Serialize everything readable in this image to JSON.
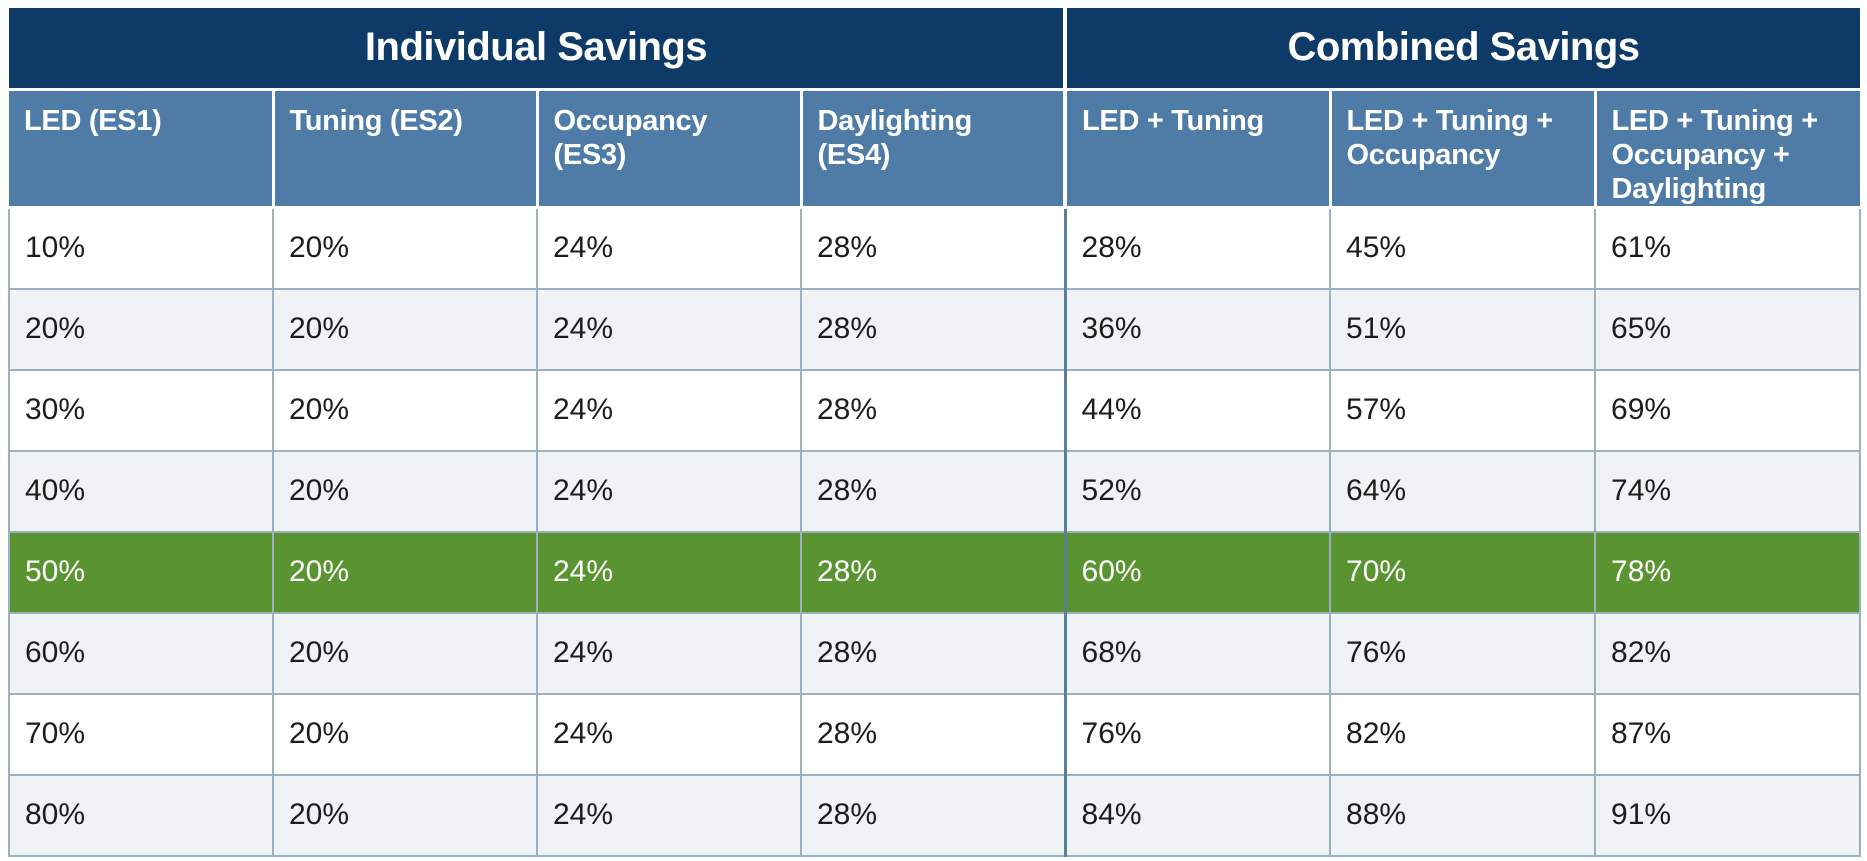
{
  "table": {
    "groups": [
      {
        "label": "Individual Savings",
        "colspan": 4
      },
      {
        "label": "Combined Savings",
        "colspan": 3
      }
    ],
    "columns": [
      "LED (ES1)",
      "Tuning (ES2)",
      "Occupancy (ES3)",
      "Daylighting (ES4)",
      "LED + Tuning",
      "LED + Tuning + Occupancy",
      "LED + Tuning + Occupancy + Daylighting"
    ],
    "rows": [
      [
        "10%",
        "20%",
        "24%",
        "28%",
        "28%",
        "45%",
        "61%"
      ],
      [
        "20%",
        "20%",
        "24%",
        "28%",
        "36%",
        "51%",
        "65%"
      ],
      [
        "30%",
        "20%",
        "24%",
        "28%",
        "44%",
        "57%",
        "69%"
      ],
      [
        "40%",
        "20%",
        "24%",
        "28%",
        "52%",
        "64%",
        "74%"
      ],
      [
        "50%",
        "20%",
        "24%",
        "28%",
        "60%",
        "70%",
        "78%"
      ],
      [
        "60%",
        "20%",
        "24%",
        "28%",
        "68%",
        "76%",
        "82%"
      ],
      [
        "70%",
        "20%",
        "24%",
        "28%",
        "76%",
        "82%",
        "87%"
      ],
      [
        "80%",
        "20%",
        "24%",
        "28%",
        "84%",
        "88%",
        "91%"
      ]
    ],
    "highlighted_row_index": 4,
    "combined_section_start_col": 4
  },
  "colors": {
    "header_navy": "#0e3a67",
    "header_blue": "#4e7ca7",
    "highlight_green": "#5a9430",
    "alt_row_gray": "#f0f3f5",
    "border_gray_blue": "#9cb0bd",
    "section_divider_blue": "#5b7f96"
  },
  "chart_data": {
    "type": "table",
    "title": "",
    "column_groups": [
      "Individual Savings",
      "Combined Savings"
    ],
    "columns": [
      "LED (ES1)",
      "Tuning (ES2)",
      "Occupancy (ES3)",
      "Daylighting (ES4)",
      "LED + Tuning",
      "LED + Tuning + Occupancy",
      "LED + Tuning + Occupancy + Daylighting"
    ],
    "rows_percent": [
      [
        10,
        20,
        24,
        28,
        28,
        45,
        61
      ],
      [
        20,
        20,
        24,
        28,
        36,
        51,
        65
      ],
      [
        30,
        20,
        24,
        28,
        44,
        57,
        69
      ],
      [
        40,
        20,
        24,
        28,
        52,
        64,
        74
      ],
      [
        50,
        20,
        24,
        28,
        60,
        70,
        78
      ],
      [
        60,
        20,
        24,
        28,
        68,
        76,
        82
      ],
      [
        70,
        20,
        24,
        28,
        76,
        82,
        87
      ],
      [
        80,
        20,
        24,
        28,
        84,
        88,
        91
      ]
    ],
    "highlighted_row_percent": [
      50,
      20,
      24,
      28,
      60,
      70,
      78
    ],
    "layout_hints": {
      "highlight_color": "#5a9430",
      "zebra_striping": true
    }
  }
}
